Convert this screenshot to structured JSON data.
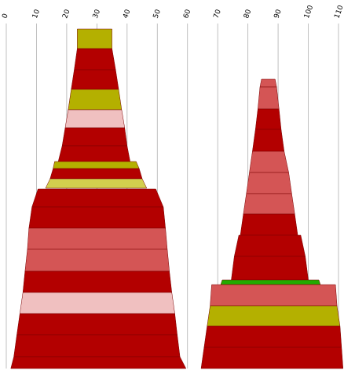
{
  "chart_data": {
    "type": "area",
    "title": "",
    "xlabel": "",
    "ylabel": "",
    "grid": true,
    "x_axis": {
      "position": "top",
      "label_rotation": -70,
      "range": [
        0,
        112
      ],
      "ticks": [
        0,
        10,
        20,
        30,
        40,
        50,
        60,
        70,
        80,
        90,
        100,
        110
      ]
    },
    "colors": {
      "dark_red": "#b30000",
      "medium_red": "#d45555",
      "light_pink": "#f0c0c0",
      "olive": "#b4b000",
      "light_olive": "#d2cf4e",
      "green": "#22aa00",
      "edge": "#7a0000",
      "grid": "#b0b0b0"
    },
    "stacks": [
      {
        "name": "",
        "bands": [
          {
            "color": "olive",
            "left": [
              23.5,
              23.5
            ],
            "right": [
              35.0,
              35.0
            ]
          },
          {
            "color": "dark_red",
            "left": [
              22.5,
              23.5
            ],
            "right": [
              36.2,
              35.0
            ]
          },
          {
            "color": "dark_red",
            "left": [
              21.5,
              22.5
            ],
            "right": [
              37.2,
              36.2
            ]
          },
          {
            "color": "olive",
            "left": [
              20.5,
              21.5
            ],
            "right": [
              38.2,
              37.2
            ]
          },
          {
            "color": "light_pink",
            "left": [
              19.5,
              20.5
            ],
            "right": [
              39.2,
              38.2
            ]
          },
          {
            "color": "dark_red",
            "left": [
              18.5,
              19.5
            ],
            "right": [
              40.0,
              39.2
            ]
          },
          {
            "color": "dark_red",
            "left": [
              17.2,
              18.5
            ],
            "right": [
              41.0,
              40.0
            ]
          },
          {
            "color": "olive",
            "left": [
              15.5,
              16.0
            ],
            "right": [
              44.0,
              43.0
            ]
          },
          {
            "color": "dark_red",
            "left": [
              14.5,
              15.5
            ],
            "right": [
              45.0,
              44.0
            ]
          },
          {
            "color": "light_olive",
            "left": [
              13.0,
              14.5
            ],
            "right": [
              46.5,
              45.0
            ]
          },
          {
            "color": "dark_red",
            "left": [
              8.5,
              10.5
            ],
            "right": [
              52.0,
              49.5
            ]
          },
          {
            "color": "dark_red",
            "left": [
              7.5,
              8.5
            ],
            "right": [
              52.7,
              52.0
            ]
          },
          {
            "color": "medium_red",
            "left": [
              7.0,
              7.5
            ],
            "right": [
              53.3,
              52.7
            ]
          },
          {
            "color": "medium_red",
            "left": [
              6.2,
              7.0
            ],
            "right": [
              54.0,
              53.3
            ]
          },
          {
            "color": "dark_red",
            "left": [
              5.5,
              6.2
            ],
            "right": [
              54.8,
              54.0
            ]
          },
          {
            "color": "light_pink",
            "left": [
              4.5,
              5.5
            ],
            "right": [
              55.8,
              54.8
            ]
          },
          {
            "color": "dark_red",
            "left": [
              3.5,
              4.5
            ],
            "right": [
              56.6,
              55.8
            ]
          },
          {
            "color": "dark_red",
            "left": [
              2.5,
              3.5
            ],
            "right": [
              57.5,
              56.6
            ]
          },
          {
            "color": "dark_red",
            "left": [
              1.5,
              2.5
            ],
            "right": [
              59.5,
              57.5
            ]
          }
        ]
      },
      {
        "name": "",
        "bands": [
          {
            "color": "medium_red",
            "left": [
              84.0,
              84.5
            ],
            "right": [
              89.5,
              89.0
            ]
          },
          {
            "color": "medium_red",
            "left": [
              83.3,
              84.0
            ],
            "right": [
              90.3,
              89.5
            ]
          },
          {
            "color": "dark_red",
            "left": [
              82.5,
              83.3
            ],
            "right": [
              91.0,
              90.3
            ]
          },
          {
            "color": "dark_red",
            "left": [
              81.5,
              82.5
            ],
            "right": [
              92.0,
              91.0
            ]
          },
          {
            "color": "medium_red",
            "left": [
              80.5,
              81.5
            ],
            "right": [
              93.5,
              92.0
            ]
          },
          {
            "color": "medium_red",
            "left": [
              79.5,
              80.5
            ],
            "right": [
              94.5,
              93.5
            ]
          },
          {
            "color": "medium_red",
            "left": [
              78.5,
              79.5
            ],
            "right": [
              95.5,
              94.5
            ]
          },
          {
            "color": "dark_red",
            "left": [
              77.5,
              78.5
            ],
            "right": [
              96.5,
              95.5
            ]
          },
          {
            "color": "dark_red",
            "left": [
              75.5,
              77.0
            ],
            "right": [
              99.0,
              97.5
            ]
          },
          {
            "color": "dark_red",
            "left": [
              74.5,
              75.5
            ],
            "right": [
              100.0,
              99.0
            ]
          },
          {
            "color": "green",
            "left": [
              71.0,
              71.5
            ],
            "right": [
              104.0,
              103.5
            ]
          },
          {
            "color": "medium_red",
            "left": [
              67.5,
              68.0
            ],
            "right": [
              109.5,
              109.0
            ]
          },
          {
            "color": "olive",
            "left": [
              66.5,
              67.5
            ],
            "right": [
              110.5,
              109.5
            ]
          },
          {
            "color": "dark_red",
            "left": [
              65.5,
              66.5
            ],
            "right": [
              111.0,
              110.5
            ]
          },
          {
            "color": "dark_red",
            "left": [
              64.5,
              65.5
            ],
            "right": [
              111.5,
              111.0
            ]
          }
        ]
      }
    ]
  }
}
